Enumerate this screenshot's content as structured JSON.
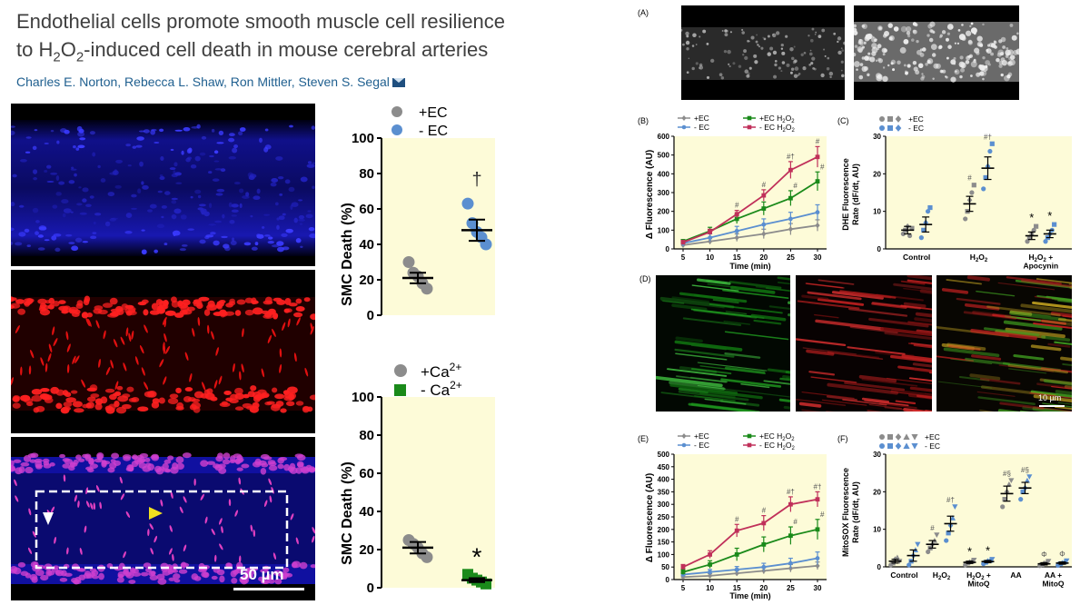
{
  "article": {
    "title_part1": "Endothelial cells promote smooth muscle cell resilience",
    "title_part2a": "to H",
    "title_part2_sub": "2",
    "title_part2b": "O",
    "title_part2_sub2": "2",
    "title_part2c": "-induced cell death in mouse cerebral arteries",
    "authors": "Charles E. Norton, Rebecca L. Shaw, Ron Mittler, Steven S. Segal"
  },
  "left_panel": {
    "scale_bar_label": "50 µm"
  },
  "right_panel": {
    "panel_labels": {
      "a": "(A)",
      "b": "(B)",
      "c": "(C)",
      "d": "(D)",
      "e": "(E)",
      "f": "(F)"
    },
    "scale_bar_d": "10 µm"
  },
  "colors": {
    "blue_channel": "#2020c8",
    "red_channel": "#e01818",
    "plot_bg": "#fdfbd8",
    "grey_marker": "#8c8c8c",
    "blue_marker": "#5b8fd0",
    "green_marker": "#1a8a1a",
    "red_marker": "#c0305a"
  },
  "chart_data": [
    {
      "id": "smc-death-ec",
      "type": "scatter",
      "ylabel": "SMC Death (%)",
      "ylim": [
        0,
        100
      ],
      "yticks": [
        "0",
        "20",
        "40",
        "60",
        "80",
        "100"
      ],
      "legend": [
        {
          "name": "+EC",
          "color": "#8c8c8c"
        },
        {
          "name": "- EC",
          "color": "#5b8fd0"
        }
      ],
      "series": [
        {
          "name": "+EC",
          "mean": 21,
          "sem": 3,
          "points": [
            30,
            24,
            22,
            18,
            15
          ]
        },
        {
          "name": "- EC",
          "mean": 48,
          "sem": 6,
          "points": [
            63,
            52,
            47,
            44,
            40
          ]
        }
      ],
      "annotations": [
        {
          "series": "- EC",
          "text": "†"
        }
      ]
    },
    {
      "id": "smc-death-ca",
      "type": "scatter",
      "ylabel": "SMC Death (%)",
      "ylim": [
        0,
        100
      ],
      "yticks": [
        "0",
        "20",
        "40",
        "60",
        "80",
        "100"
      ],
      "legend_text": [
        {
          "base": "+Ca",
          "sup": "2+",
          "color": "#8c8c8c",
          "marker": "circle"
        },
        {
          "base": "- Ca",
          "sup": "2+",
          "color": "#1a8a1a",
          "marker": "square"
        }
      ],
      "series": [
        {
          "name": "+Ca2+",
          "mean": 21,
          "sem": 3,
          "points": [
            25,
            23,
            21,
            18,
            16
          ]
        },
        {
          "name": "- Ca2+",
          "mean": 4,
          "sem": 1,
          "points": [
            7,
            5,
            4,
            3,
            2
          ]
        }
      ],
      "annotations": [
        {
          "series": "- Ca2+",
          "text": "*"
        }
      ]
    },
    {
      "id": "dhe-time",
      "type": "line",
      "ylabel": "Δ Fluorescence (AU)",
      "xlabel": "Time (min)",
      "x": [
        5,
        10,
        15,
        20,
        25,
        30
      ],
      "ylim": [
        0,
        600
      ],
      "yticks": [
        "0",
        "100",
        "200",
        "300",
        "400",
        "500",
        "600"
      ],
      "legend": [
        {
          "name": "+EC"
        },
        {
          "name": "- EC"
        },
        {
          "name": "+EC H",
          "sub": "2",
          "mid": "O",
          "sub2": "2"
        },
        {
          "name": "- EC H",
          "sub": "2",
          "mid": "O",
          "sub2": "2"
        }
      ],
      "series": [
        {
          "name": "+EC",
          "color": "#8c8c8c",
          "values": [
            20,
            40,
            60,
            80,
            105,
            125
          ],
          "err": [
            10,
            15,
            20,
            25,
            30,
            30
          ]
        },
        {
          "name": "- EC",
          "color": "#5b8fd0",
          "values": [
            30,
            60,
            95,
            130,
            160,
            195
          ],
          "err": [
            15,
            20,
            25,
            30,
            35,
            40
          ]
        },
        {
          "name": "+EC H2O2",
          "color": "#1a8a1a",
          "values": [
            40,
            95,
            160,
            215,
            270,
            360
          ],
          "err": [
            10,
            20,
            25,
            35,
            40,
            50
          ]
        },
        {
          "name": "- EC H2O2",
          "color": "#c0305a",
          "values": [
            35,
            90,
            185,
            285,
            420,
            490
          ],
          "err": [
            10,
            15,
            20,
            30,
            45,
            55
          ]
        }
      ],
      "annotations": [
        "#",
        "#",
        "#",
        "#†",
        "#",
        "#"
      ]
    },
    {
      "id": "dhe-rate",
      "type": "scatter",
      "ylabel": "DHE Fluorescence Rate (dF/dt, AU)",
      "ylabel_line1": "DHE Fluorescence",
      "ylabel_line2": "Rate (dF/dt, AU)",
      "ylim": [
        0,
        30
      ],
      "yticks": [
        "0",
        "10",
        "20",
        "30"
      ],
      "categories": [
        "Control",
        "H2O2",
        "H2O2 + Apocynin"
      ],
      "category_labels": [
        {
          "text": "Control"
        },
        {
          "base": "H",
          "sub": "2",
          "mid": "O",
          "sub2": "2"
        },
        {
          "base": "H",
          "sub": "2",
          "mid": "O",
          "sub2": "2",
          "tail": " +",
          "line2": "Apocynin"
        }
      ],
      "legend": [
        {
          "name": "+EC",
          "color": "#8c8c8c"
        },
        {
          "name": "- EC",
          "color": "#5b8fd0"
        }
      ],
      "series": [
        {
          "name": "+EC",
          "means": [
            5,
            12,
            3.5
          ],
          "sem": [
            1,
            2,
            1
          ],
          "points": [
            [
              4,
              5,
              6,
              3.5,
              5.5
            ],
            [
              8,
              10,
              13,
              15,
              17
            ],
            [
              2,
              3,
              4,
              5,
              6
            ]
          ]
        },
        {
          "name": "- EC",
          "means": [
            6.5,
            21.5,
            4
          ],
          "sem": [
            2,
            3,
            1
          ],
          "points": [
            [
              3,
              5,
              7,
              10,
              11
            ],
            [
              16,
              19,
              22,
              26,
              28
            ],
            [
              2,
              3,
              4,
              5,
              6.5
            ]
          ]
        }
      ],
      "annotations": [
        "#",
        "#†",
        "*",
        "*"
      ]
    },
    {
      "id": "mitosox-time",
      "type": "line",
      "ylabel": "Δ Fluorescence (AU)",
      "xlabel": "Time (min)",
      "x": [
        5,
        10,
        15,
        20,
        25,
        30
      ],
      "ylim": [
        0,
        500
      ],
      "yticks": [
        "0",
        "50",
        "100",
        "150",
        "200",
        "250",
        "300",
        "350",
        "400",
        "450",
        "500"
      ],
      "legend": [
        {
          "name": "+EC"
        },
        {
          "name": "- EC"
        },
        {
          "name": "+EC H",
          "sub": "2",
          "mid": "O",
          "sub2": "2"
        },
        {
          "name": "- EC H",
          "sub": "2",
          "mid": "O",
          "sub2": "2"
        }
      ],
      "series": [
        {
          "name": "+EC",
          "color": "#8c8c8c",
          "values": [
            10,
            15,
            25,
            35,
            45,
            55
          ],
          "err": [
            5,
            8,
            10,
            12,
            15,
            15
          ]
        },
        {
          "name": "- EC",
          "color": "#5b8fd0",
          "values": [
            20,
            30,
            40,
            50,
            65,
            85
          ],
          "err": [
            8,
            10,
            12,
            15,
            20,
            25
          ]
        },
        {
          "name": "+EC H2O2",
          "color": "#1a8a1a",
          "values": [
            30,
            60,
            100,
            140,
            175,
            200
          ],
          "err": [
            10,
            15,
            25,
            30,
            35,
            40
          ]
        },
        {
          "name": "- EC H2O2",
          "color": "#c0305a",
          "values": [
            50,
            100,
            195,
            225,
            300,
            320
          ],
          "err": [
            10,
            15,
            25,
            30,
            30,
            30
          ]
        }
      ],
      "annotations": [
        "#",
        "#",
        "#",
        "#†",
        "#†",
        "#"
      ]
    },
    {
      "id": "mitosox-rate",
      "type": "scatter",
      "ylabel": "MitoSOX Fluorescence Rate (dF/dt, AU)",
      "ylabel_line1": "MitoSOX Fluorescence",
      "ylabel_line2": "Rate (dF/dt, AU)",
      "ylim": [
        0,
        30
      ],
      "yticks": [
        "0",
        "10",
        "20",
        "30"
      ],
      "categories": [
        "Control",
        "H2O2",
        "H2O2 + MitoQ",
        "AA",
        "AA + MitoQ"
      ],
      "category_labels": [
        {
          "text": "Control"
        },
        {
          "base": "H",
          "sub": "2",
          "mid": "O",
          "sub2": "2"
        },
        {
          "base": "H",
          "sub": "2",
          "mid": "O",
          "sub2": "2",
          "tail": " +",
          "line2": "MitoQ"
        },
        {
          "text": "AA"
        },
        {
          "text": "AA +",
          "line2": "MitoQ"
        }
      ],
      "legend": [
        {
          "name": "+EC",
          "color": "#8c8c8c"
        },
        {
          "name": "- EC",
          "color": "#5b8fd0"
        }
      ],
      "series": [
        {
          "name": "+EC",
          "means": [
            1.5,
            6,
            1.2,
            19.5,
            0.8
          ],
          "sem": [
            0.5,
            1,
            0.3,
            2,
            0.3
          ],
          "points": [
            [
              0.5,
              1,
              2,
              2.5,
              1.5
            ],
            [
              4,
              5,
              6,
              7,
              8.5
            ],
            [
              0.5,
              1,
              1.2,
              1.5,
              1.8
            ],
            [
              16,
              18,
              20,
              22,
              23
            ],
            [
              0.3,
              0.6,
              0.9,
              1.2,
              1.5
            ]
          ]
        },
        {
          "name": "- EC",
          "means": [
            3,
            11.5,
            1.4,
            21,
            1
          ],
          "sem": [
            1.5,
            2,
            0.3,
            1.5,
            0.3
          ],
          "points": [
            [
              0.5,
              1.5,
              3,
              4.5,
              6
            ],
            [
              7,
              9,
              11,
              13,
              16
            ],
            [
              0.8,
              1.2,
              1.5,
              1.7,
              2
            ],
            [
              18,
              20,
              21,
              23,
              24
            ],
            [
              0.4,
              0.8,
              1,
              1.3,
              1.6
            ]
          ]
        }
      ],
      "annotations": [
        "#",
        "#†",
        "*",
        "*",
        "#§",
        "#§",
        "Φ",
        "Φ"
      ]
    }
  ]
}
